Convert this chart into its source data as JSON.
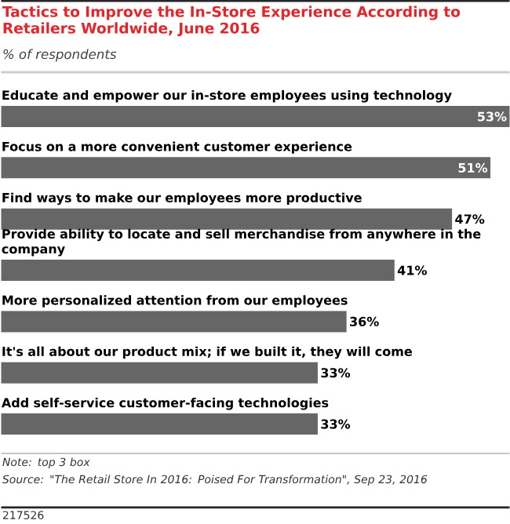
{
  "chart_data": {
    "type": "bar",
    "orientation": "horizontal",
    "title": "Tactics to Improve the In-Store Experience According to Retailers Worldwide, June 2016",
    "subtitle": "% of respondents",
    "categories": [
      "Educate and empower our in-store employees using technology",
      "Focus on a more convenient customer experience",
      "Find ways to make our employees more productive",
      "Provide ability to locate and sell merchandise from anywhere in the company",
      "More personalized attention from our employees",
      "It's all about our product mix; if we built it, they will come",
      "Add self-service customer-facing technologies"
    ],
    "values": [
      53,
      51,
      47,
      41,
      36,
      33,
      33
    ],
    "value_labels": [
      "53%",
      "51%",
      "47%",
      "41%",
      "36%",
      "33%",
      "33%"
    ],
    "color": "#666666",
    "annotations": [
      "Note: top 3 box",
      "Source: \"The Retail Store In 2016: Poised For Transformation\", Sep 23, 2016",
      "217526"
    ]
  }
}
